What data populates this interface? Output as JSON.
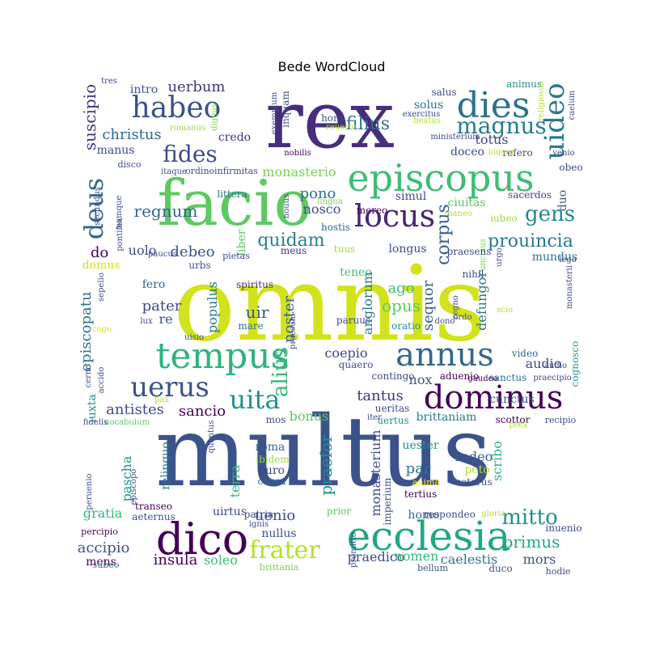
{
  "chart_data": {
    "type": "wordcloud",
    "title": "Bede WordCloud",
    "words": [
      {
        "text": "multus",
        "color": "#3b528b"
      },
      {
        "text": "omnis",
        "color": "#d2e21b"
      },
      {
        "text": "rex",
        "color": "#472d7b"
      },
      {
        "text": "facio",
        "color": "#5ec962"
      },
      {
        "text": "episcopus",
        "color": "#3fbc73"
      },
      {
        "text": "ecclesia",
        "color": "#21a685"
      },
      {
        "text": "dico",
        "color": "#440154"
      },
      {
        "text": "tempus",
        "color": "#2eb37c"
      },
      {
        "text": "annus",
        "color": "#31688e"
      },
      {
        "text": "dominus",
        "color": "#440154"
      },
      {
        "text": "habeo",
        "color": "#3b528b"
      },
      {
        "text": "dies",
        "color": "#2c728e"
      },
      {
        "text": "locus",
        "color": "#482475"
      },
      {
        "text": "uerus",
        "color": "#3b528b"
      },
      {
        "text": "uita",
        "color": "#21918c"
      },
      {
        "text": "magnus",
        "color": "#287d8e"
      },
      {
        "text": "uideo",
        "color": "#2a788e"
      },
      {
        "text": "deus",
        "color": "#31688e"
      },
      {
        "text": "fides",
        "color": "#3e4a89"
      },
      {
        "text": "frater",
        "color": "#b5de2b"
      },
      {
        "text": "mitto",
        "color": "#21918c"
      },
      {
        "text": "gens",
        "color": "#25848e"
      },
      {
        "text": "prouincia",
        "color": "#2a788e"
      },
      {
        "text": "corpus",
        "color": "#355f8d"
      },
      {
        "text": "alius",
        "color": "#35b779"
      },
      {
        "text": "filius",
        "color": "#2c728e"
      },
      {
        "text": "suscipio",
        "color": "#46327e"
      },
      {
        "text": "christus",
        "color": "#31688e"
      },
      {
        "text": "uerbum",
        "color": "#46327e"
      },
      {
        "text": "regnum",
        "color": "#31688e"
      },
      {
        "text": "quidam",
        "color": "#26828e"
      },
      {
        "text": "debeo",
        "color": "#3b528b"
      },
      {
        "text": "uolo",
        "color": "#3e4a89"
      },
      {
        "text": "do",
        "color": "#440154"
      },
      {
        "text": "monasterio",
        "color": "#7ad151"
      },
      {
        "text": "pono",
        "color": "#2c728e"
      },
      {
        "text": "nosco",
        "color": "#3e4a89"
      },
      {
        "text": "sequor",
        "color": "#355f8d"
      },
      {
        "text": "opus",
        "color": "#5ec962"
      },
      {
        "text": "ago",
        "color": "#44bf70"
      },
      {
        "text": "uir",
        "color": "#3b528b"
      },
      {
        "text": "noster",
        "color": "#355f8d"
      },
      {
        "text": "pater",
        "color": "#3e4a89"
      },
      {
        "text": "fero",
        "color": "#31688e"
      },
      {
        "text": "re",
        "color": "#3b528b"
      },
      {
        "text": "populus",
        "color": "#2a788e"
      },
      {
        "text": "episcopatu",
        "color": "#2c728e"
      },
      {
        "text": "coepio",
        "color": "#414487"
      },
      {
        "text": "audio",
        "color": "#414487"
      },
      {
        "text": "tantus",
        "color": "#46327e"
      },
      {
        "text": "sancio",
        "color": "#440154"
      },
      {
        "text": "antistes",
        "color": "#3e4a89"
      },
      {
        "text": "nox",
        "color": "#3b528b"
      },
      {
        "text": "bonus",
        "color": "#5ec962"
      },
      {
        "text": "brittaniam",
        "color": "#2a788e"
      },
      {
        "text": "praefor",
        "color": "#21918c"
      },
      {
        "text": "monasterium",
        "color": "#3e4a89"
      },
      {
        "text": "redeo",
        "color": "#355f8d"
      },
      {
        "text": "par",
        "color": "#2c728e"
      },
      {
        "text": "peto",
        "color": "#b5de2b"
      },
      {
        "text": "scribo",
        "color": "#2eb37c"
      },
      {
        "text": "uester",
        "color": "#21918c"
      },
      {
        "text": "pascha",
        "color": "#21918c"
      },
      {
        "text": "relinquo",
        "color": "#2c728e"
      },
      {
        "text": "terra",
        "color": "#35b779"
      },
      {
        "text": "roma",
        "color": "#31688e"
      },
      {
        "text": "curo",
        "color": "#3e4a89"
      },
      {
        "text": "gratia",
        "color": "#35b779"
      },
      {
        "text": "uenio",
        "color": "#3e4a89"
      },
      {
        "text": "nullus",
        "color": "#3b528b"
      },
      {
        "text": "accipio",
        "color": "#3b528b"
      },
      {
        "text": "insula",
        "color": "#440154"
      },
      {
        "text": "soleo",
        "color": "#3fbc73"
      },
      {
        "text": "mens",
        "color": "#440154"
      },
      {
        "text": "homo",
        "color": "#31688e"
      },
      {
        "text": "praedico",
        "color": "#3e4a89"
      },
      {
        "text": "nomen",
        "color": "#35b779"
      },
      {
        "text": "caelestis",
        "color": "#2a788e"
      },
      {
        "text": "primus",
        "color": "#22a884"
      },
      {
        "text": "mors",
        "color": "#3b528b"
      },
      {
        "text": "solus",
        "color": "#2c728e"
      },
      {
        "text": "totus",
        "color": "#414487"
      },
      {
        "text": "doceo",
        "color": "#3e4a89"
      },
      {
        "text": "credo",
        "color": "#46327e"
      },
      {
        "text": "manus",
        "color": "#3e4a89"
      },
      {
        "text": "intro",
        "color": "#3b528b"
      },
      {
        "text": "inquam",
        "color": "#3e4a89"
      },
      {
        "text": "hora",
        "color": "#3b528b"
      },
      {
        "text": "salus",
        "color": "#3e4a89"
      },
      {
        "text": "animus",
        "color": "#21918c"
      },
      {
        "text": "refero",
        "color": "#414487"
      },
      {
        "text": "obeo",
        "color": "#3e4a89"
      },
      {
        "text": "ciuitas",
        "color": "#5ec962"
      },
      {
        "text": "simul",
        "color": "#3e4a89"
      },
      {
        "text": "mereo",
        "color": "#440154"
      },
      {
        "text": "sacerdos",
        "color": "#414487"
      },
      {
        "text": "duo",
        "color": "#3b528b"
      },
      {
        "text": "iubeo",
        "color": "#a0da39"
      },
      {
        "text": "mundus",
        "color": "#2c728e"
      },
      {
        "text": "longus",
        "color": "#3e4a89"
      },
      {
        "text": "hostis",
        "color": "#31688e"
      },
      {
        "text": "tuus",
        "color": "#a0da39"
      },
      {
        "text": "meus",
        "color": "#46327e"
      },
      {
        "text": "teneo",
        "color": "#3fbc73"
      },
      {
        "text": "littera",
        "color": "#2c728e"
      },
      {
        "text": "liber",
        "color": "#5ec962"
      },
      {
        "text": "urbs",
        "color": "#3b528b"
      },
      {
        "text": "nihil",
        "color": "#3e4a89"
      },
      {
        "text": "defungor",
        "color": "#2a788e"
      },
      {
        "text": "oratio",
        "color": "#21918c"
      },
      {
        "text": "paruus",
        "color": "#3e4a89"
      },
      {
        "text": "mare",
        "color": "#2c728e"
      },
      {
        "text": "spiritus",
        "color": "#46327e"
      },
      {
        "text": "domus",
        "color": "#d2e21b"
      },
      {
        "text": "quaero",
        "color": "#3b528b"
      },
      {
        "text": "contingo",
        "color": "#3e4a89"
      },
      {
        "text": "aduenio",
        "color": "#440154"
      },
      {
        "text": "sanctus",
        "color": "#2c728e"
      },
      {
        "text": "video",
        "color": "#31688e"
      },
      {
        "text": "iuxta",
        "color": "#21918c"
      },
      {
        "text": "mos",
        "color": "#3e4a89"
      },
      {
        "text": "cunctus",
        "color": "#3b528b"
      },
      {
        "text": "scottor",
        "color": "#440154"
      },
      {
        "text": "uocabulum",
        "color": "#5ec962"
      },
      {
        "text": "quantus",
        "color": "#3e4a89"
      },
      {
        "text": "causa",
        "color": "#31688e"
      },
      {
        "text": "ibidem",
        "color": "#a0da39"
      },
      {
        "text": "uirtus",
        "color": "#3e4a89"
      },
      {
        "text": "patria",
        "color": "#3e4a89"
      },
      {
        "text": "aeternus",
        "color": "#3b528b"
      },
      {
        "text": "transeo",
        "color": "#440154"
      },
      {
        "text": "percipio",
        "color": "#440154"
      },
      {
        "text": "prior",
        "color": "#5ec962"
      },
      {
        "text": "respondeo",
        "color": "#3e4a89"
      },
      {
        "text": "inuenio",
        "color": "#3e4a89"
      },
      {
        "text": "bellum",
        "color": "#3b528b"
      },
      {
        "text": "duco",
        "color": "#3b528b"
      },
      {
        "text": "hodie",
        "color": "#3e4a89"
      },
      {
        "text": "subeo",
        "color": "#2c728e"
      },
      {
        "text": "brittania",
        "color": "#7ad151"
      },
      {
        "text": "anima",
        "color": "#fde725"
      },
      {
        "text": "ceterus",
        "color": "#3b528b"
      },
      {
        "text": "imperium",
        "color": "#3e4a89"
      },
      {
        "text": "uncinus",
        "color": "#7ad151"
      },
      {
        "text": "praesens",
        "color": "#3e4a89"
      },
      {
        "text": "anglorum",
        "color": "#2a788e"
      },
      {
        "text": "uertus",
        "color": "#21918c"
      },
      {
        "text": "ueritas",
        "color": "#3e4a89"
      },
      {
        "text": "tertius",
        "color": "#440154"
      },
      {
        "text": "cognosco",
        "color": "#21918c"
      },
      {
        "text": "audio",
        "color": "#3b528b"
      },
      {
        "text": "recipio",
        "color": "#3e4a89"
      },
      {
        "text": "praecipio",
        "color": "#3e4a89"
      },
      {
        "text": "gaudeo",
        "color": "#440154"
      },
      {
        "text": "exercitus",
        "color": "#3e4a89"
      },
      {
        "text": "ministerium",
        "color": "#3e4a89"
      },
      {
        "text": "venio",
        "color": "#3e4a89"
      },
      {
        "text": "pietas",
        "color": "#3e4a89"
      },
      {
        "text": "nobilis",
        "color": "#440154"
      },
      {
        "text": "romanus",
        "color": "#a0da39"
      },
      {
        "text": "disco",
        "color": "#3e4a89"
      },
      {
        "text": "itaque",
        "color": "#3e4a89"
      },
      {
        "text": "ordino",
        "color": "#3e4a89"
      },
      {
        "text": "infirmitas",
        "color": "#3e4a89"
      },
      {
        "text": "secundus",
        "color": "#3e4a89"
      },
      {
        "text": "namque",
        "color": "#3e4a89"
      },
      {
        "text": "pontifex",
        "color": "#3e4a89"
      },
      {
        "text": "paucus",
        "color": "#3e4a89"
      },
      {
        "text": "sepelio",
        "color": "#3e4a89"
      },
      {
        "text": "cogo",
        "color": "#d2e21b"
      },
      {
        "text": "lux",
        "color": "#3e4a89"
      },
      {
        "text": "uisio",
        "color": "#3e4a89"
      },
      {
        "text": "cerno",
        "color": "#3e4a89"
      },
      {
        "text": "accido",
        "color": "#3e4a89"
      },
      {
        "text": "fidelis",
        "color": "#3e4a89"
      },
      {
        "text": "pax",
        "color": "#b5de2b"
      },
      {
        "text": "iter",
        "color": "#3e4a89"
      },
      {
        "text": "prex",
        "color": "#b5de2b"
      },
      {
        "text": "peruenio",
        "color": "#3e4a89"
      },
      {
        "text": "episcopo",
        "color": "#3e4a89"
      },
      {
        "text": "ignis",
        "color": "#3e4a89"
      },
      {
        "text": "promitto",
        "color": "#3e4a89"
      },
      {
        "text": "gloria",
        "color": "#b5de2b"
      },
      {
        "text": "tres",
        "color": "#3e4a89"
      },
      {
        "text": "dignus",
        "color": "#7ad151"
      },
      {
        "text": "exemplum",
        "color": "#3e4a89"
      },
      {
        "text": "reuerto",
        "color": "#b5de2b"
      },
      {
        "text": "beatus",
        "color": "#b5de2b"
      },
      {
        "text": "caelum",
        "color": "#3e4a89"
      },
      {
        "text": "religiosus",
        "color": "#b5de2b"
      },
      {
        "text": "loquor",
        "color": "#b5de2b"
      },
      {
        "text": "lingua",
        "color": "#7ad151"
      },
      {
        "text": "nouus",
        "color": "#3e4a89"
      },
      {
        "text": "maneo",
        "color": "#b5de2b"
      },
      {
        "text": "urgo",
        "color": "#3e4a89"
      },
      {
        "text": "lego",
        "color": "#3e4a89"
      },
      {
        "text": "monasterii",
        "color": "#3e4a89"
      },
      {
        "text": "scio",
        "color": "#b5de2b"
      },
      {
        "text": "regno",
        "color": "#3e4a89"
      },
      {
        "text": "ordo",
        "color": "#3e4a89"
      },
      {
        "text": "dono",
        "color": "#3e4a89"
      },
      {
        "text": "praesum",
        "color": "#3e4a89"
      }
    ]
  }
}
